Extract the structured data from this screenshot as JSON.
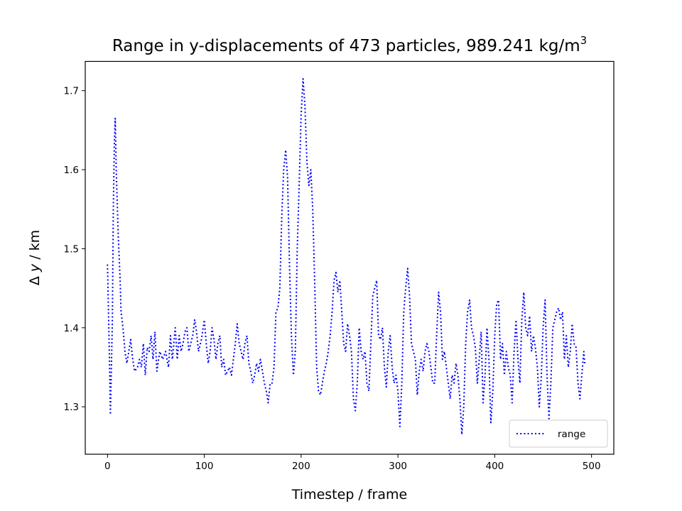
{
  "chart_data": {
    "type": "line",
    "title": "Range in y-displacements of 473 particles, 989.241 kg/m",
    "title_superscript": "3",
    "xlabel": "Timestep / frame",
    "ylabel_delta": "Δ",
    "ylabel_var": "y",
    "ylabel_unit": " / km",
    "xlim": [
      -23,
      523
    ],
    "ylim": [
      1.24,
      1.737
    ],
    "xticks": [
      0,
      100,
      200,
      300,
      400,
      500
    ],
    "xtick_labels": [
      "0",
      "100",
      "200",
      "300",
      "400",
      "500"
    ],
    "yticks": [
      1.3,
      1.4,
      1.5,
      1.6,
      1.7
    ],
    "ytick_labels": [
      "1.3",
      "1.4",
      "1.5",
      "1.6",
      "1.7"
    ],
    "grid": false,
    "legend_position": "lower-right",
    "series": [
      {
        "name": "range",
        "color": "#0000ff",
        "linestyle": "dotted",
        "points": [
          [
            0,
            1.48
          ],
          [
            2,
            1.36
          ],
          [
            3,
            1.29
          ],
          [
            5,
            1.41
          ],
          [
            6,
            1.55
          ],
          [
            7,
            1.63
          ],
          [
            8,
            1.665
          ],
          [
            9,
            1.6
          ],
          [
            11,
            1.52
          ],
          [
            13,
            1.46
          ],
          [
            14,
            1.42
          ],
          [
            16,
            1.4
          ],
          [
            18,
            1.37
          ],
          [
            20,
            1.355
          ],
          [
            22,
            1.37
          ],
          [
            24,
            1.385
          ],
          [
            26,
            1.36
          ],
          [
            28,
            1.345
          ],
          [
            31,
            1.35
          ],
          [
            33,
            1.36
          ],
          [
            35,
            1.35
          ],
          [
            37,
            1.38
          ],
          [
            39,
            1.34
          ],
          [
            41,
            1.375
          ],
          [
            43,
            1.37
          ],
          [
            45,
            1.39
          ],
          [
            47,
            1.36
          ],
          [
            49,
            1.395
          ],
          [
            51,
            1.345
          ],
          [
            54,
            1.37
          ],
          [
            57,
            1.36
          ],
          [
            60,
            1.37
          ],
          [
            63,
            1.35
          ],
          [
            65,
            1.39
          ],
          [
            67,
            1.36
          ],
          [
            70,
            1.4
          ],
          [
            72,
            1.36
          ],
          [
            74,
            1.39
          ],
          [
            76,
            1.37
          ],
          [
            78,
            1.38
          ],
          [
            80,
            1.395
          ],
          [
            82,
            1.4
          ],
          [
            84,
            1.37
          ],
          [
            86,
            1.38
          ],
          [
            88,
            1.39
          ],
          [
            90,
            1.41
          ],
          [
            92,
            1.395
          ],
          [
            94,
            1.37
          ],
          [
            97,
            1.385
          ],
          [
            100,
            1.41
          ],
          [
            102,
            1.38
          ],
          [
            104,
            1.355
          ],
          [
            106,
            1.37
          ],
          [
            108,
            1.4
          ],
          [
            110,
            1.385
          ],
          [
            112,
            1.36
          ],
          [
            114,
            1.38
          ],
          [
            116,
            1.39
          ],
          [
            118,
            1.35
          ],
          [
            120,
            1.36
          ],
          [
            122,
            1.34
          ],
          [
            124,
            1.345
          ],
          [
            126,
            1.35
          ],
          [
            128,
            1.34
          ],
          [
            130,
            1.36
          ],
          [
            132,
            1.38
          ],
          [
            134,
            1.405
          ],
          [
            136,
            1.38
          ],
          [
            138,
            1.37
          ],
          [
            140,
            1.36
          ],
          [
            142,
            1.38
          ],
          [
            144,
            1.39
          ],
          [
            146,
            1.355
          ],
          [
            148,
            1.345
          ],
          [
            150,
            1.33
          ],
          [
            152,
            1.34
          ],
          [
            154,
            1.355
          ],
          [
            156,
            1.345
          ],
          [
            158,
            1.36
          ],
          [
            160,
            1.345
          ],
          [
            162,
            1.33
          ],
          [
            164,
            1.32
          ],
          [
            166,
            1.305
          ],
          [
            168,
            1.33
          ],
          [
            170,
            1.33
          ],
          [
            172,
            1.35
          ],
          [
            174,
            1.42
          ],
          [
            176,
            1.425
          ],
          [
            178,
            1.45
          ],
          [
            180,
            1.54
          ],
          [
            182,
            1.6
          ],
          [
            184,
            1.625
          ],
          [
            186,
            1.59
          ],
          [
            188,
            1.48
          ],
          [
            190,
            1.39
          ],
          [
            192,
            1.34
          ],
          [
            194,
            1.37
          ],
          [
            196,
            1.5
          ],
          [
            198,
            1.58
          ],
          [
            200,
            1.67
          ],
          [
            202,
            1.715
          ],
          [
            204,
            1.68
          ],
          [
            206,
            1.61
          ],
          [
            208,
            1.58
          ],
          [
            210,
            1.6
          ],
          [
            212,
            1.55
          ],
          [
            214,
            1.46
          ],
          [
            216,
            1.35
          ],
          [
            218,
            1.32
          ],
          [
            220,
            1.315
          ],
          [
            222,
            1.33
          ],
          [
            224,
            1.345
          ],
          [
            226,
            1.355
          ],
          [
            228,
            1.37
          ],
          [
            230,
            1.39
          ],
          [
            232,
            1.42
          ],
          [
            234,
            1.46
          ],
          [
            236,
            1.47
          ],
          [
            238,
            1.445
          ],
          [
            240,
            1.46
          ],
          [
            242,
            1.42
          ],
          [
            244,
            1.38
          ],
          [
            246,
            1.37
          ],
          [
            248,
            1.405
          ],
          [
            250,
            1.39
          ],
          [
            252,
            1.37
          ],
          [
            254,
            1.31
          ],
          [
            256,
            1.295
          ],
          [
            258,
            1.33
          ],
          [
            260,
            1.4
          ],
          [
            262,
            1.37
          ],
          [
            264,
            1.36
          ],
          [
            266,
            1.37
          ],
          [
            268,
            1.33
          ],
          [
            270,
            1.32
          ],
          [
            272,
            1.38
          ],
          [
            274,
            1.44
          ],
          [
            276,
            1.45
          ],
          [
            278,
            1.46
          ],
          [
            280,
            1.39
          ],
          [
            282,
            1.385
          ],
          [
            284,
            1.4
          ],
          [
            286,
            1.35
          ],
          [
            288,
            1.325
          ],
          [
            290,
            1.37
          ],
          [
            292,
            1.39
          ],
          [
            294,
            1.35
          ],
          [
            296,
            1.33
          ],
          [
            298,
            1.34
          ],
          [
            300,
            1.32
          ],
          [
            302,
            1.275
          ],
          [
            304,
            1.33
          ],
          [
            306,
            1.42
          ],
          [
            308,
            1.45
          ],
          [
            310,
            1.475
          ],
          [
            312,
            1.44
          ],
          [
            314,
            1.38
          ],
          [
            316,
            1.37
          ],
          [
            318,
            1.36
          ],
          [
            320,
            1.315
          ],
          [
            322,
            1.345
          ],
          [
            324,
            1.36
          ],
          [
            326,
            1.345
          ],
          [
            328,
            1.37
          ],
          [
            330,
            1.38
          ],
          [
            332,
            1.37
          ],
          [
            334,
            1.35
          ],
          [
            336,
            1.33
          ],
          [
            338,
            1.33
          ],
          [
            340,
            1.39
          ],
          [
            342,
            1.445
          ],
          [
            344,
            1.42
          ],
          [
            346,
            1.36
          ],
          [
            348,
            1.37
          ],
          [
            350,
            1.35
          ],
          [
            352,
            1.33
          ],
          [
            354,
            1.31
          ],
          [
            356,
            1.34
          ],
          [
            358,
            1.33
          ],
          [
            360,
            1.355
          ],
          [
            362,
            1.34
          ],
          [
            364,
            1.31
          ],
          [
            366,
            1.265
          ],
          [
            368,
            1.3
          ],
          [
            370,
            1.38
          ],
          [
            372,
            1.42
          ],
          [
            374,
            1.435
          ],
          [
            376,
            1.4
          ],
          [
            378,
            1.39
          ],
          [
            380,
            1.375
          ],
          [
            382,
            1.33
          ],
          [
            384,
            1.36
          ],
          [
            386,
            1.395
          ],
          [
            388,
            1.305
          ],
          [
            390,
            1.34
          ],
          [
            392,
            1.4
          ],
          [
            394,
            1.36
          ],
          [
            396,
            1.28
          ],
          [
            398,
            1.32
          ],
          [
            400,
            1.39
          ],
          [
            402,
            1.43
          ],
          [
            404,
            1.435
          ],
          [
            406,
            1.36
          ],
          [
            408,
            1.38
          ],
          [
            410,
            1.34
          ],
          [
            412,
            1.37
          ],
          [
            414,
            1.35
          ],
          [
            416,
            1.34
          ],
          [
            418,
            1.305
          ],
          [
            420,
            1.37
          ],
          [
            422,
            1.41
          ],
          [
            424,
            1.36
          ],
          [
            426,
            1.33
          ],
          [
            428,
            1.41
          ],
          [
            430,
            1.445
          ],
          [
            432,
            1.4
          ],
          [
            434,
            1.39
          ],
          [
            436,
            1.415
          ],
          [
            438,
            1.37
          ],
          [
            440,
            1.39
          ],
          [
            442,
            1.375
          ],
          [
            444,
            1.35
          ],
          [
            446,
            1.3
          ],
          [
            448,
            1.335
          ],
          [
            450,
            1.4
          ],
          [
            452,
            1.435
          ],
          [
            454,
            1.34
          ],
          [
            456,
            1.285
          ],
          [
            458,
            1.33
          ],
          [
            460,
            1.4
          ],
          [
            462,
            1.41
          ],
          [
            464,
            1.42
          ],
          [
            466,
            1.425
          ],
          [
            468,
            1.41
          ],
          [
            470,
            1.42
          ],
          [
            472,
            1.36
          ],
          [
            474,
            1.39
          ],
          [
            476,
            1.35
          ],
          [
            478,
            1.37
          ],
          [
            480,
            1.405
          ],
          [
            482,
            1.38
          ],
          [
            484,
            1.375
          ],
          [
            486,
            1.33
          ],
          [
            488,
            1.31
          ],
          [
            490,
            1.34
          ],
          [
            492,
            1.37
          ],
          [
            493,
            1.355
          ]
        ]
      }
    ]
  }
}
